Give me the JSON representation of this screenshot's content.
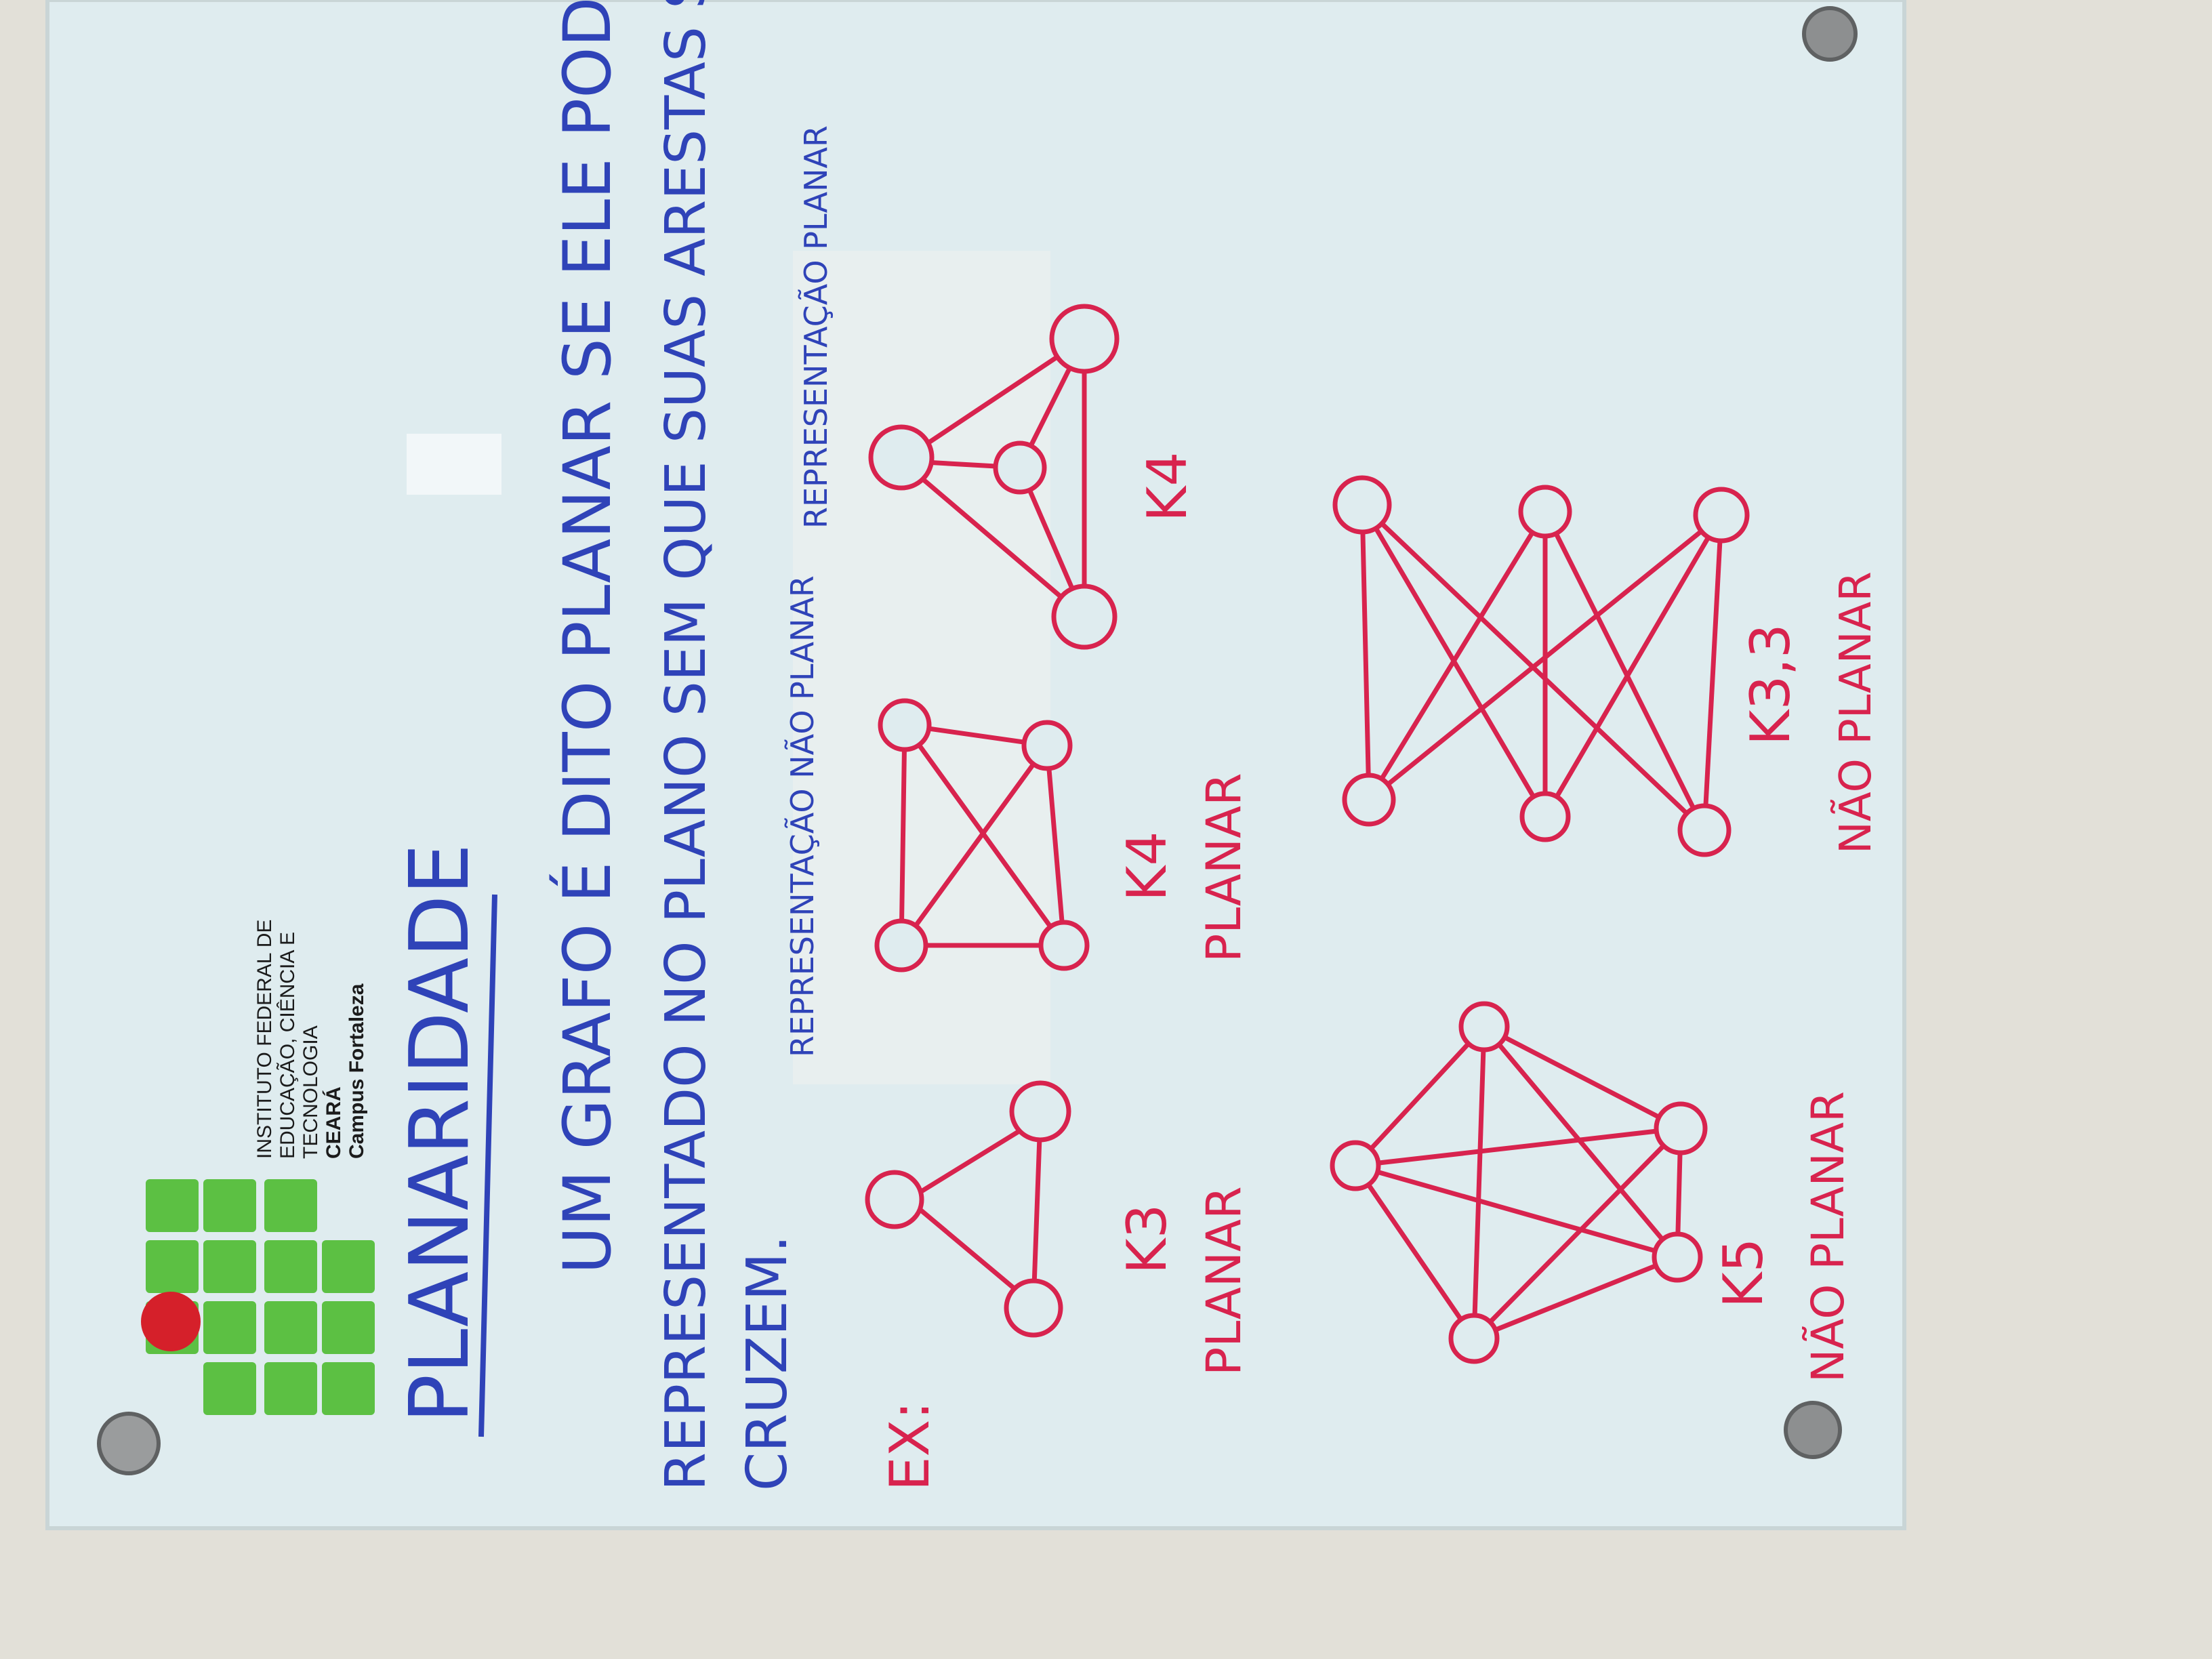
{
  "board": {
    "title": "PLANARIDADE",
    "definition_lines": [
      "UM GRAFO É DITO PLANAR SE ELE PODE SER",
      "REPRESENTADO NO PLANO SEM QUE SUAS ARESTAS SE",
      "CRUZEM."
    ],
    "example_label": "EX:"
  },
  "logo": {
    "institution_lines": [
      "INSTITUTO FEDERAL DE",
      "EDUCAÇÃO, CIÊNCIA E",
      "TECNOLOGIA"
    ],
    "state": "CEARÁ",
    "campus": "Campus Fortaleza",
    "green": "#5cc043",
    "red": "#d5202a"
  },
  "graphs": [
    {
      "name": "K3",
      "caption": "PLANAR"
    },
    {
      "name": "K4",
      "caption": "PLANAR",
      "note": "REPRESENTAÇÃO NÃO PLANAR"
    },
    {
      "name": "K4",
      "note": "REPRESENTAÇÃO PLANAR"
    },
    {
      "name": "K5",
      "caption": "NÃO PLANAR"
    },
    {
      "name": "K3,3",
      "caption": "NÃO PLANAR"
    }
  ],
  "colors": {
    "marker_blue": "#2f43b8",
    "marker_red": "#d8234e",
    "board": "#e1eef0"
  }
}
